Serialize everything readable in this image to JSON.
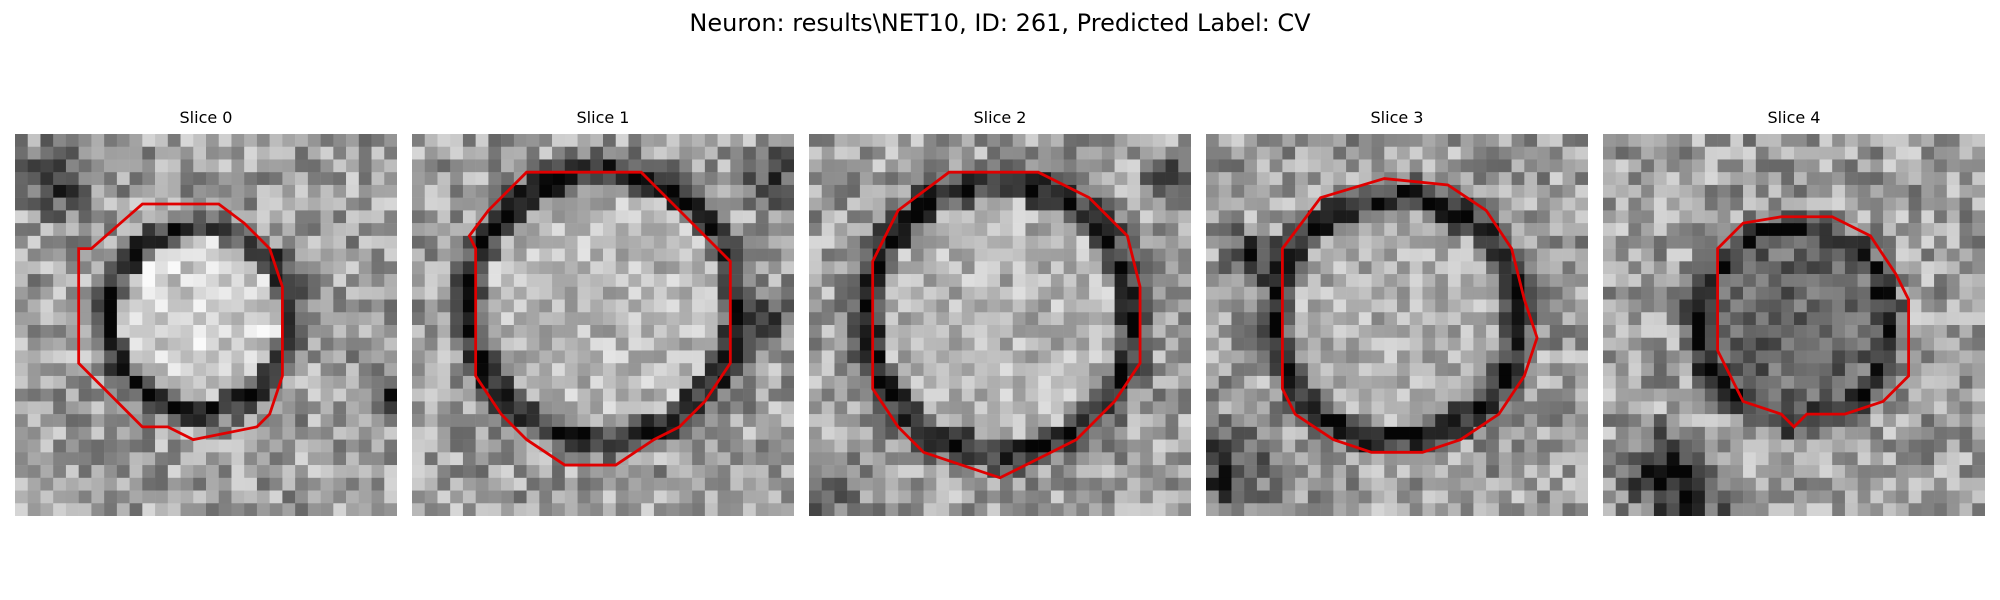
{
  "figure": {
    "suptitle": "Neuron: results\\NET10, ID: 261, Predicted Label: CV"
  },
  "outline_color": "#e00000",
  "panels": [
    {
      "title": "Slice 0",
      "image": "grayscale-em-patch"
    },
    {
      "title": "Slice 1",
      "image": "grayscale-em-patch"
    },
    {
      "title": "Slice 2",
      "image": "grayscale-em-patch"
    },
    {
      "title": "Slice 3",
      "image": "grayscale-em-patch"
    },
    {
      "title": "Slice 4",
      "image": "grayscale-em-patch"
    }
  ]
}
